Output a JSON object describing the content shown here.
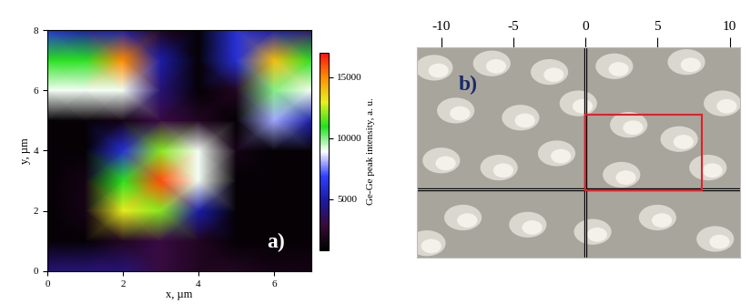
{
  "chart_data": [
    {
      "type": "heatmap",
      "label": "a)",
      "x": [
        0,
        1,
        2,
        3,
        4,
        5,
        6,
        7
      ],
      "y": [
        0,
        1,
        2,
        3,
        4,
        5,
        6,
        7,
        8
      ],
      "cells": [
        [
          4000,
          4000,
          4000,
          3000,
          2000,
          2000,
          1500,
          1500
        ],
        [
          1000,
          1000,
          2000,
          3000,
          2000,
          1000,
          1000,
          1000
        ],
        [
          1000,
          1500,
          13000,
          12000,
          5000,
          1000,
          1000,
          1000
        ],
        [
          1000,
          1500,
          11000,
          16000,
          9000,
          1000,
          1000,
          1000
        ],
        [
          1000,
          1000,
          6000,
          12000,
          9000,
          1500,
          1000,
          1000
        ],
        [
          1000,
          1000,
          1500,
          3000,
          2000,
          1000,
          8000,
          5000
        ],
        [
          9000,
          9000,
          9000,
          4000,
          1000,
          2000,
          10000,
          9000
        ],
        [
          11000,
          11000,
          15000,
          5000,
          1000,
          6000,
          14000,
          11000
        ],
        [
          6000,
          5000,
          5000,
          2000,
          1000,
          6000,
          5000,
          4000
        ]
      ],
      "xlim": [
        0,
        7
      ],
      "ylim": [
        0,
        8
      ],
      "xticks": [
        0,
        2,
        4,
        6
      ],
      "yticks": [
        0,
        2,
        4,
        6,
        8
      ],
      "x_label": "x, µm",
      "y_label": "y, µm",
      "colorbar": {
        "label": "Ge-Ge peak intensity, a. u.",
        "range": [
          800,
          17000
        ],
        "ticks": [
          5000,
          10000,
          15000
        ]
      }
    },
    {
      "type": "image",
      "label": "b)",
      "xlim": [
        -11.7,
        10.7
      ],
      "ylim": [
        -4.8,
        9.9
      ],
      "xticks": [
        -10,
        -5,
        0,
        5,
        10
      ],
      "tick_labels": "x",
      "rectangle": {
        "x": [
          0,
          8.1
        ],
        "y": [
          -0.1,
          5.2
        ],
        "color": "#e0202a"
      }
    }
  ]
}
